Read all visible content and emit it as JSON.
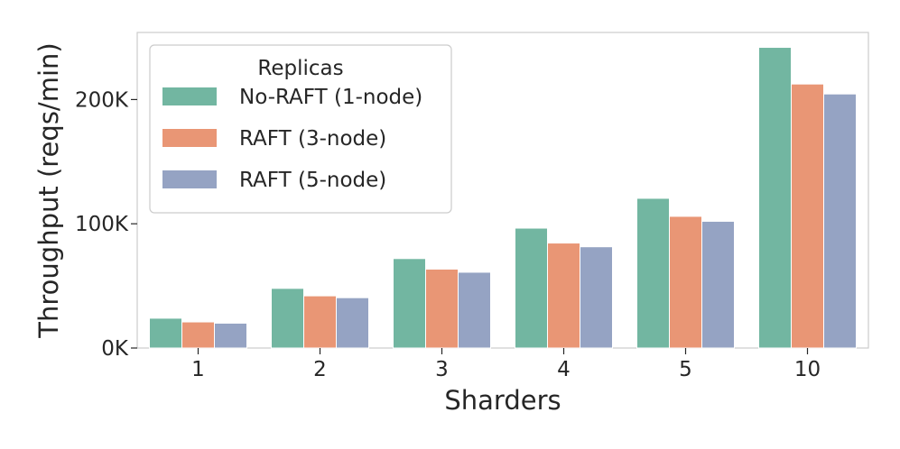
{
  "chart_data": {
    "type": "bar",
    "categories": [
      "1",
      "2",
      "3",
      "4",
      "5",
      "10"
    ],
    "series": [
      {
        "name": "No-RAFT (1-node)",
        "color": "#72b6a1",
        "values": [
          24000,
          48000,
          72000,
          96500,
          120500,
          242000
        ]
      },
      {
        "name": "RAFT (3-node)",
        "color": "#e99675",
        "values": [
          21000,
          42000,
          63500,
          84500,
          106000,
          212500
        ]
      },
      {
        "name": "RAFT (5-node)",
        "color": "#95a3c3",
        "values": [
          20000,
          40500,
          61000,
          81500,
          102000,
          204500
        ]
      }
    ],
    "xlabel": "Sharders",
    "ylabel": "Throughput (reqs/min)",
    "ylim": [
      0,
      254000
    ],
    "yticks": [
      {
        "value": 0,
        "label": "0K"
      },
      {
        "value": 100000,
        "label": "100K"
      },
      {
        "value": 200000,
        "label": "200K"
      }
    ],
    "legend": {
      "title": "Replicas",
      "position": "top-left"
    },
    "grid": false
  }
}
